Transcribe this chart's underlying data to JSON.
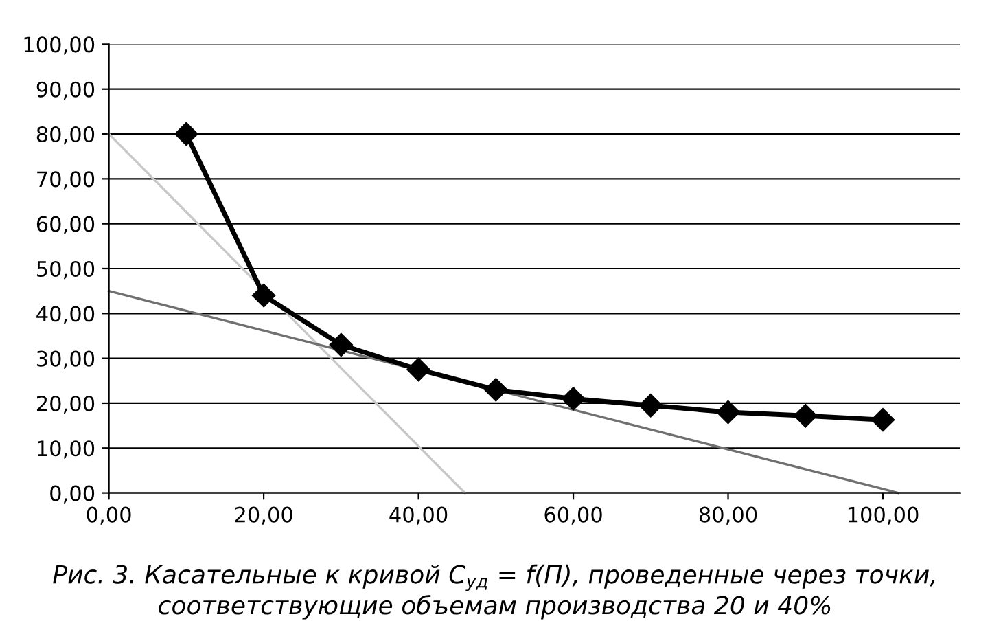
{
  "chart_data": {
    "type": "line",
    "xlim": [
      0,
      110
    ],
    "ylim": [
      0,
      100
    ],
    "xticks": [
      {
        "value": 0,
        "label": "0,00"
      },
      {
        "value": 20,
        "label": "20,00"
      },
      {
        "value": 40,
        "label": "40,00"
      },
      {
        "value": 60,
        "label": "60,00"
      },
      {
        "value": 80,
        "label": "80,00"
      },
      {
        "value": 100,
        "label": "100,00"
      }
    ],
    "yticks": [
      {
        "value": 0,
        "label": "0,00"
      },
      {
        "value": 10,
        "label": "10,00"
      },
      {
        "value": 20,
        "label": "20,00"
      },
      {
        "value": 30,
        "label": "30,00"
      },
      {
        "value": 40,
        "label": "40,00"
      },
      {
        "value": 50,
        "label": "50,00"
      },
      {
        "value": 60,
        "label": "60,00"
      },
      {
        "value": 70,
        "label": "70,00"
      },
      {
        "value": 80,
        "label": "80,00"
      },
      {
        "value": 90,
        "label": "90,00"
      },
      {
        "value": 100,
        "label": "100,00"
      }
    ],
    "grid": "y",
    "legend": false,
    "series": [
      {
        "color": "#000000",
        "marker": "diamond",
        "line_style": "solid",
        "x": [
          10,
          20,
          30,
          40,
          50,
          60,
          70,
          80,
          90,
          100
        ],
        "values": [
          80,
          44,
          33,
          27.5,
          23,
          21,
          19.5,
          18,
          17.2,
          16.3
        ]
      },
      {
        "color": "#c8c8c8",
        "marker": "none",
        "line_style": "solid",
        "x": [
          0,
          46
        ],
        "values": [
          80,
          0
        ]
      },
      {
        "color": "#707070",
        "marker": "none",
        "line_style": "solid",
        "x": [
          0,
          102
        ],
        "values": [
          45,
          0
        ]
      }
    ],
    "annotations": [
      "Рис. 3. Касательные к кривой C$_{уд}$ = f(П), проведенные через точки, соответствующие объемам производства 20 и 40%"
    ]
  }
}
